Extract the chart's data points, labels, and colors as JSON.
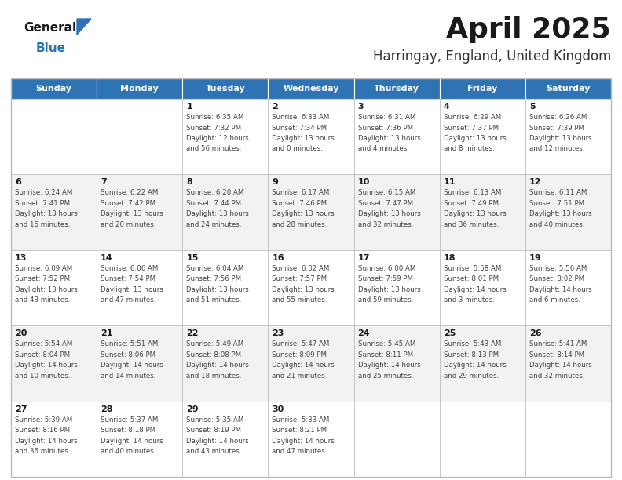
{
  "title": "April 2025",
  "subtitle": "Harringay, England, United Kingdom",
  "days_of_week": [
    "Sunday",
    "Monday",
    "Tuesday",
    "Wednesday",
    "Thursday",
    "Friday",
    "Saturday"
  ],
  "header_bg": "#2E74B5",
  "header_text": "#FFFFFF",
  "logo_triangle_color": "#2E74B5",
  "logo_text_color": "#1A1A1A",
  "logo_blue_color": "#2E74B5",
  "title_color": "#1A1A1A",
  "subtitle_color": "#333333",
  "text_color": "#444444",
  "cell_bg_even": "#FFFFFF",
  "cell_bg_odd": "#F2F2F2",
  "border_color": "#BBBBBB",
  "calendar_data": [
    [
      {
        "day": null,
        "sunrise": null,
        "sunset": null,
        "daylight": null
      },
      {
        "day": null,
        "sunrise": null,
        "sunset": null,
        "daylight": null
      },
      {
        "day": 1,
        "sunrise": "6:35 AM",
        "sunset": "7:32 PM",
        "daylight": "12 hours and 56 minutes."
      },
      {
        "day": 2,
        "sunrise": "6:33 AM",
        "sunset": "7:34 PM",
        "daylight": "13 hours and 0 minutes."
      },
      {
        "day": 3,
        "sunrise": "6:31 AM",
        "sunset": "7:36 PM",
        "daylight": "13 hours and 4 minutes."
      },
      {
        "day": 4,
        "sunrise": "6:29 AM",
        "sunset": "7:37 PM",
        "daylight": "13 hours and 8 minutes."
      },
      {
        "day": 5,
        "sunrise": "6:26 AM",
        "sunset": "7:39 PM",
        "daylight": "13 hours and 12 minutes."
      }
    ],
    [
      {
        "day": 6,
        "sunrise": "6:24 AM",
        "sunset": "7:41 PM",
        "daylight": "13 hours and 16 minutes."
      },
      {
        "day": 7,
        "sunrise": "6:22 AM",
        "sunset": "7:42 PM",
        "daylight": "13 hours and 20 minutes."
      },
      {
        "day": 8,
        "sunrise": "6:20 AM",
        "sunset": "7:44 PM",
        "daylight": "13 hours and 24 minutes."
      },
      {
        "day": 9,
        "sunrise": "6:17 AM",
        "sunset": "7:46 PM",
        "daylight": "13 hours and 28 minutes."
      },
      {
        "day": 10,
        "sunrise": "6:15 AM",
        "sunset": "7:47 PM",
        "daylight": "13 hours and 32 minutes."
      },
      {
        "day": 11,
        "sunrise": "6:13 AM",
        "sunset": "7:49 PM",
        "daylight": "13 hours and 36 minutes."
      },
      {
        "day": 12,
        "sunrise": "6:11 AM",
        "sunset": "7:51 PM",
        "daylight": "13 hours and 40 minutes."
      }
    ],
    [
      {
        "day": 13,
        "sunrise": "6:09 AM",
        "sunset": "7:52 PM",
        "daylight": "13 hours and 43 minutes."
      },
      {
        "day": 14,
        "sunrise": "6:06 AM",
        "sunset": "7:54 PM",
        "daylight": "13 hours and 47 minutes."
      },
      {
        "day": 15,
        "sunrise": "6:04 AM",
        "sunset": "7:56 PM",
        "daylight": "13 hours and 51 minutes."
      },
      {
        "day": 16,
        "sunrise": "6:02 AM",
        "sunset": "7:57 PM",
        "daylight": "13 hours and 55 minutes."
      },
      {
        "day": 17,
        "sunrise": "6:00 AM",
        "sunset": "7:59 PM",
        "daylight": "13 hours and 59 minutes."
      },
      {
        "day": 18,
        "sunrise": "5:58 AM",
        "sunset": "8:01 PM",
        "daylight": "14 hours and 3 minutes."
      },
      {
        "day": 19,
        "sunrise": "5:56 AM",
        "sunset": "8:02 PM",
        "daylight": "14 hours and 6 minutes."
      }
    ],
    [
      {
        "day": 20,
        "sunrise": "5:54 AM",
        "sunset": "8:04 PM",
        "daylight": "14 hours and 10 minutes."
      },
      {
        "day": 21,
        "sunrise": "5:51 AM",
        "sunset": "8:06 PM",
        "daylight": "14 hours and 14 minutes."
      },
      {
        "day": 22,
        "sunrise": "5:49 AM",
        "sunset": "8:08 PM",
        "daylight": "14 hours and 18 minutes."
      },
      {
        "day": 23,
        "sunrise": "5:47 AM",
        "sunset": "8:09 PM",
        "daylight": "14 hours and 21 minutes."
      },
      {
        "day": 24,
        "sunrise": "5:45 AM",
        "sunset": "8:11 PM",
        "daylight": "14 hours and 25 minutes."
      },
      {
        "day": 25,
        "sunrise": "5:43 AM",
        "sunset": "8:13 PM",
        "daylight": "14 hours and 29 minutes."
      },
      {
        "day": 26,
        "sunrise": "5:41 AM",
        "sunset": "8:14 PM",
        "daylight": "14 hours and 32 minutes."
      }
    ],
    [
      {
        "day": 27,
        "sunrise": "5:39 AM",
        "sunset": "8:16 PM",
        "daylight": "14 hours and 36 minutes."
      },
      {
        "day": 28,
        "sunrise": "5:37 AM",
        "sunset": "8:18 PM",
        "daylight": "14 hours and 40 minutes."
      },
      {
        "day": 29,
        "sunrise": "5:35 AM",
        "sunset": "8:19 PM",
        "daylight": "14 hours and 43 minutes."
      },
      {
        "day": 30,
        "sunrise": "5:33 AM",
        "sunset": "8:21 PM",
        "daylight": "14 hours and 47 minutes."
      },
      {
        "day": null,
        "sunrise": null,
        "sunset": null,
        "daylight": null
      },
      {
        "day": null,
        "sunrise": null,
        "sunset": null,
        "daylight": null
      },
      {
        "day": null,
        "sunrise": null,
        "sunset": null,
        "daylight": null
      }
    ]
  ]
}
